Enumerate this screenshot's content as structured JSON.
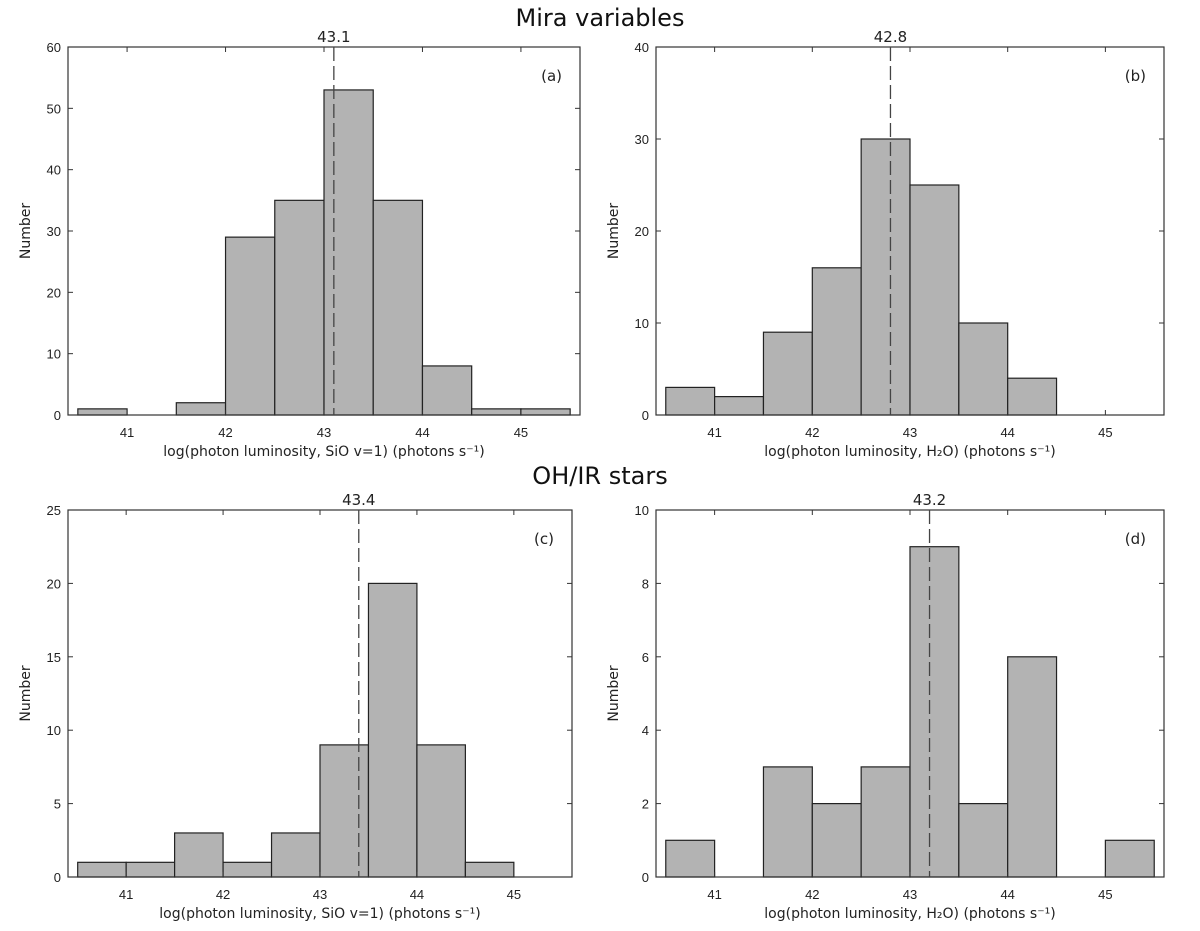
{
  "section_titles": {
    "top": "Mira variables",
    "bottom": "OH/IR stars"
  },
  "chart_data": [
    {
      "type": "bar",
      "panel_label": "(a)",
      "xlabel": "log(photon luminosity, SiO v=1) (photons s⁻¹)",
      "ylabel": "Number",
      "bin_width": 0.5,
      "bin_centers": [
        40.75,
        41.25,
        41.75,
        42.25,
        42.75,
        43.25,
        43.75,
        44.25,
        44.75,
        45.25
      ],
      "values": [
        1,
        0,
        2,
        29,
        35,
        53,
        35,
        8,
        1,
        1
      ],
      "xlim": [
        40.4,
        45.6
      ],
      "ylim": [
        0,
        60
      ],
      "xticks": [
        41,
        42,
        43,
        44,
        45
      ],
      "yticks": [
        0,
        10,
        20,
        30,
        40,
        50,
        60
      ],
      "median": {
        "value": 43.1,
        "label": "43.1"
      }
    },
    {
      "type": "bar",
      "panel_label": "(b)",
      "xlabel": "log(photon luminosity, H₂O) (photons s⁻¹)",
      "ylabel": "Number",
      "bin_width": 0.5,
      "bin_centers": [
        40.75,
        41.25,
        41.75,
        42.25,
        42.75,
        43.25,
        43.75,
        44.25
      ],
      "values": [
        3,
        2,
        9,
        16,
        30,
        25,
        10,
        4
      ],
      "xlim": [
        40.4,
        45.6
      ],
      "ylim": [
        0,
        40
      ],
      "xticks": [
        41,
        42,
        43,
        44,
        45
      ],
      "yticks": [
        0,
        10,
        20,
        30,
        40
      ],
      "median": {
        "value": 42.8,
        "label": "42.8"
      }
    },
    {
      "type": "bar",
      "panel_label": "(c)",
      "xlabel": "log(photon luminosity, SiO v=1) (photons s⁻¹)",
      "ylabel": "Number",
      "bin_width": 0.5,
      "bin_centers": [
        40.75,
        41.25,
        41.75,
        42.25,
        42.75,
        43.25,
        43.75,
        44.25,
        44.75
      ],
      "values": [
        1,
        1,
        3,
        1,
        3,
        9,
        20,
        9,
        1
      ],
      "xlim": [
        40.4,
        45.6
      ],
      "ylim": [
        0,
        25
      ],
      "xticks": [
        41,
        42,
        43,
        44,
        45
      ],
      "yticks": [
        0,
        5,
        10,
        15,
        20,
        25
      ],
      "median": {
        "value": 43.4,
        "label": "43.4"
      }
    },
    {
      "type": "bar",
      "panel_label": "(d)",
      "xlabel": "log(photon luminosity, H₂O) (photons s⁻¹)",
      "ylabel": "Number",
      "bin_width": 0.5,
      "bin_centers": [
        40.75,
        41.75,
        42.25,
        42.75,
        43.25,
        43.75,
        44.25,
        45.25
      ],
      "values": [
        1,
        3,
        2,
        3,
        9,
        2,
        6,
        1
      ],
      "xlim": [
        40.4,
        45.6
      ],
      "ylim": [
        0,
        10
      ],
      "xticks": [
        41,
        42,
        43,
        44,
        45
      ],
      "yticks": [
        0,
        2,
        4,
        6,
        8,
        10
      ],
      "median": {
        "value": 43.2,
        "label": "43.2"
      }
    }
  ]
}
